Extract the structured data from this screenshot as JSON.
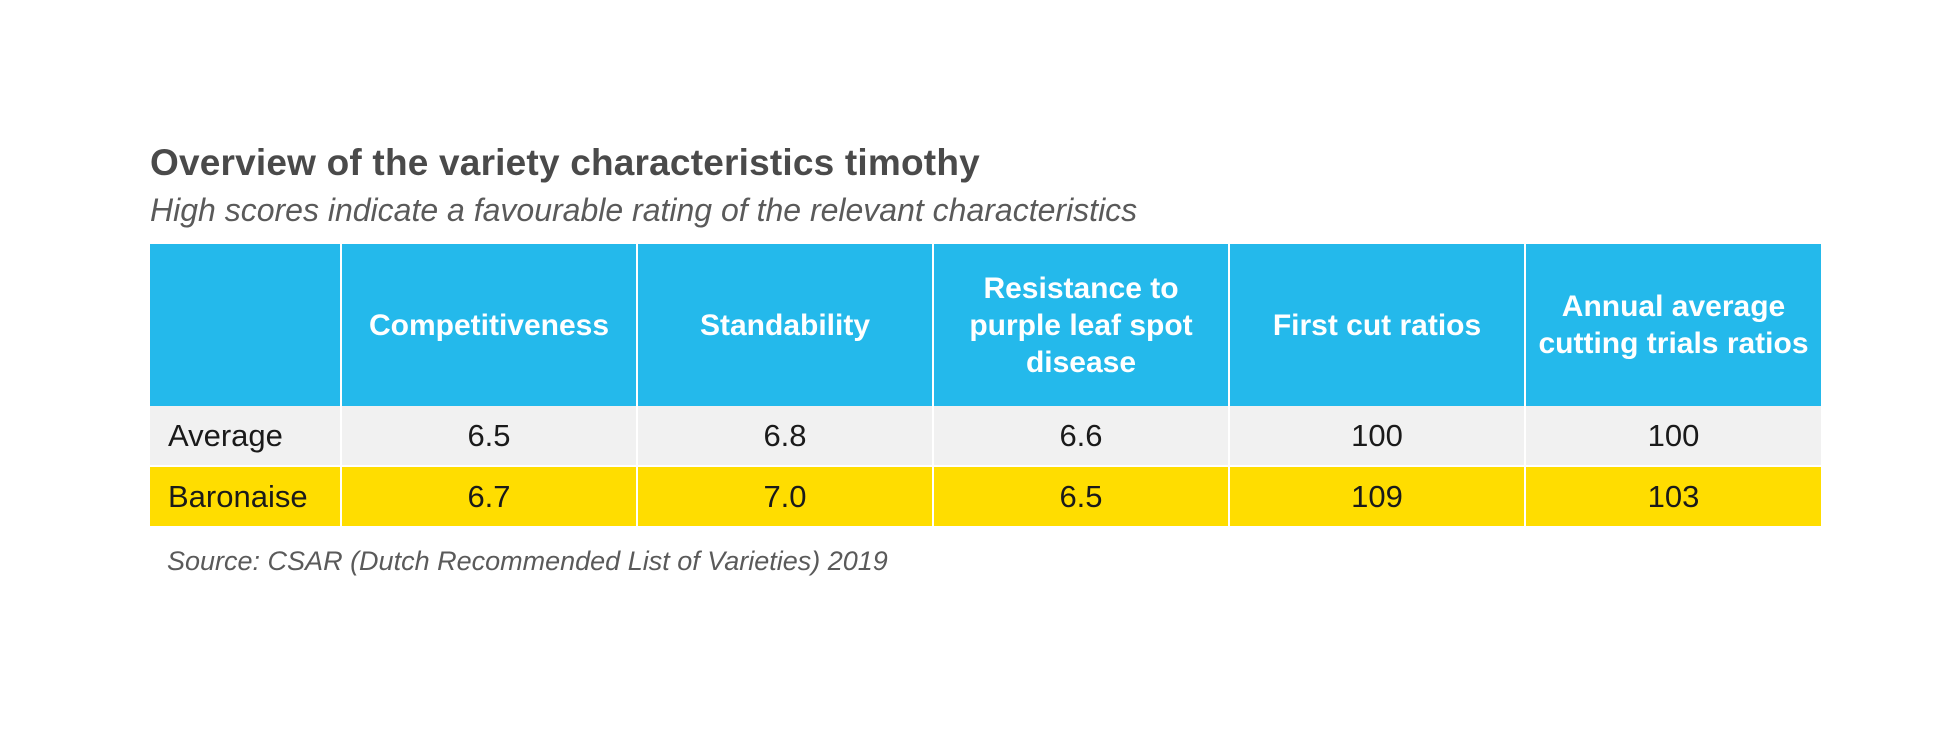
{
  "title": "Overview of the variety characteristics timothy",
  "subtitle": "High scores indicate a favourable rating of the relevant characteristics",
  "table": {
    "headers": [
      "",
      "Competitiveness",
      "Standability",
      "Resistance to purple leaf spot disease",
      "First cut ratios",
      "Annual average cutting trials ratios"
    ],
    "rows": [
      [
        "Average",
        "6.5",
        "6.8",
        "6.6",
        "100",
        "100"
      ],
      [
        "Baronaise",
        "6.7",
        "7.0",
        "6.5",
        "109",
        "103"
      ]
    ]
  },
  "source": "Source: CSAR (Dutch Recommended List of Varieties) 2019",
  "colors": {
    "header_bg": "#24b9eb",
    "average_row_bg": "#f1f1f1",
    "highlight_row_bg": "#ffdd00"
  }
}
